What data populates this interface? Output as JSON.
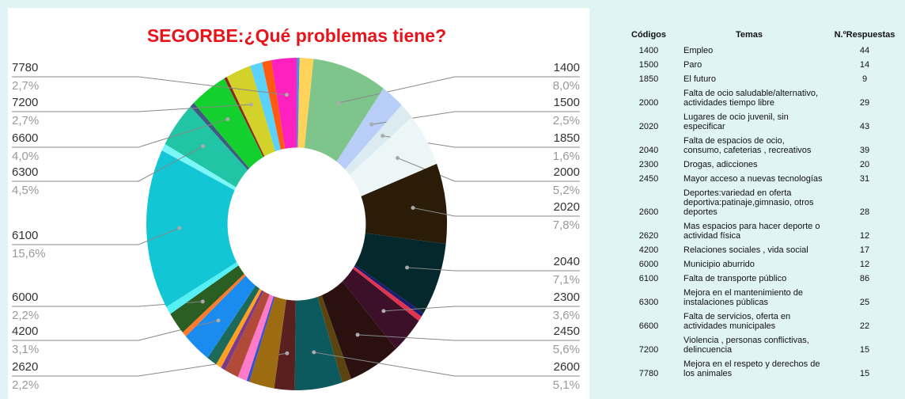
{
  "chart_data": {
    "type": "donut",
    "title": "SEGORBE:¿Qué problemas tiene?",
    "categories": [
      null,
      null,
      "1400",
      "1500",
      "1850",
      "2000",
      "2020",
      "2040",
      null,
      null,
      "2300",
      "2450",
      null,
      "2600",
      "2620",
      null,
      null,
      null,
      null,
      null,
      null,
      null,
      "4200",
      null,
      "6000",
      null,
      "6100",
      null,
      "6300",
      null,
      "6600",
      null,
      "7200",
      null,
      null,
      "7780"
    ],
    "values": [
      0.3,
      1.5,
      8.0,
      2.5,
      1.6,
      5.2,
      7.8,
      7.1,
      0.4,
      0.5,
      3.6,
      5.6,
      1.0,
      5.1,
      2.2,
      2.7,
      0.3,
      1.0,
      1.5,
      0.5,
      0.6,
      1.1,
      3.1,
      0.5,
      2.2,
      0.8,
      15.6,
      0.7,
      4.5,
      0.5,
      4.0,
      0.3,
      2.7,
      1.3,
      1.0,
      2.7
    ],
    "value_labels": [
      null,
      null,
      "8,0%",
      "2,5%",
      "1,6%",
      "5,2%",
      "7,8%",
      "7,1%",
      null,
      null,
      "3,6%",
      "5,6%",
      null,
      "5,1%",
      "2,2%",
      null,
      null,
      null,
      null,
      null,
      null,
      null,
      "3,1%",
      null,
      "2,2%",
      null,
      "15,6%",
      null,
      "4,5%",
      null,
      "4,0%",
      null,
      "2,7%",
      null,
      null,
      "2,7%"
    ],
    "colors": [
      "#4a90e2",
      "#ffd35a",
      "#7dc58b",
      "#b8cdf7",
      "#dcebf0",
      "#edf6f6",
      "#2a1c06",
      "#04282b",
      "#1c1c70",
      "#e2334f",
      "#3b1028",
      "#2b1010",
      "#5c4410",
      "#0c5a5e",
      "#5a1f1f",
      "#9c6b12",
      "#3a50d0",
      "#ff7ac8",
      "#b24a3a",
      "#7a3a8a",
      "#ffa020",
      "#1e6a5a",
      "#1a8cf0",
      "#ff7a2a",
      "#2a5e22",
      "#55f0f5",
      "#12c6d6",
      "#7cf7f7",
      "#22c4a6",
      "#405a80",
      "#14d02e",
      "#8a2a1a",
      "#d2d22a",
      "#5ad2fa",
      "#ff5a10",
      "#ff20c0"
    ]
  },
  "table": {
    "header": [
      "Códigos",
      "Temas",
      "N.ºRespuestas"
    ],
    "rows": [
      [
        "1400",
        "Empleo",
        "44"
      ],
      [
        "1500",
        "Paro",
        "14"
      ],
      [
        "1850",
        "El futuro",
        "9"
      ],
      [
        "2000",
        "Falta de ocio saludable/alternativo, actividades tiempo libre",
        "29"
      ],
      [
        "2020",
        "Lugares de ocio juvenil, sin especificar",
        "43"
      ],
      [
        "2040",
        "Falta de espacios de ocio, consumo, cafeterias , recreativos",
        "39"
      ],
      [
        "2300",
        "Drogas, adicciones",
        "20"
      ],
      [
        "2450",
        "Mayor acceso a nuevas tecnologías",
        "31"
      ],
      [
        "2600",
        "Deportes:variedad en oferta deportiva:patinaje,gimnasio, otros deportes",
        "28"
      ],
      [
        "2620",
        "Mas espacios para hacer deporte o actividad física",
        "12"
      ],
      [
        "4200",
        "Relaciones sociales , vida social",
        "17"
      ],
      [
        "6000",
        "Municipio aburrido",
        "12"
      ],
      [
        "6100",
        "Falta de transporte público",
        "86"
      ],
      [
        "6300",
        "Mejora en el mantenimiento de instalaciones públicas",
        "25"
      ],
      [
        "6600",
        "Falta de servicios, oferta en actividades municipales",
        "22"
      ],
      [
        "7200",
        "Violencia , personas conflictivas, delincuencia",
        "15"
      ],
      [
        "7780",
        "Mejora en el respeto y derechos de los animales",
        "15"
      ]
    ]
  }
}
